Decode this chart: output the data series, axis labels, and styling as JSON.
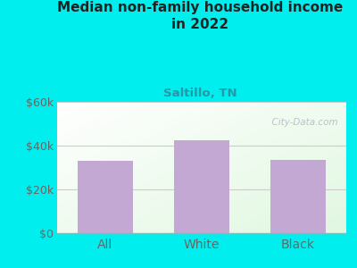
{
  "title": "Median non-family household income\nin 2022",
  "subtitle": "Saltillo, TN",
  "categories": [
    "All",
    "White",
    "Black"
  ],
  "values": [
    33000,
    42500,
    33500
  ],
  "bar_color": "#c4a8d4",
  "background_color": "#00EEEE",
  "title_color": "#222222",
  "subtitle_color": "#2299aa",
  "tick_color": "#666666",
  "ylim": [
    0,
    60000
  ],
  "yticks": [
    0,
    20000,
    40000,
    60000
  ],
  "ytick_labels": [
    "$0",
    "$20k",
    "$40k",
    "$60k"
  ],
  "watermark": "  City-Data.com",
  "grid_color": "#cccccc",
  "grid_linewidth": 0.8,
  "spine_color": "#aaaaaa"
}
